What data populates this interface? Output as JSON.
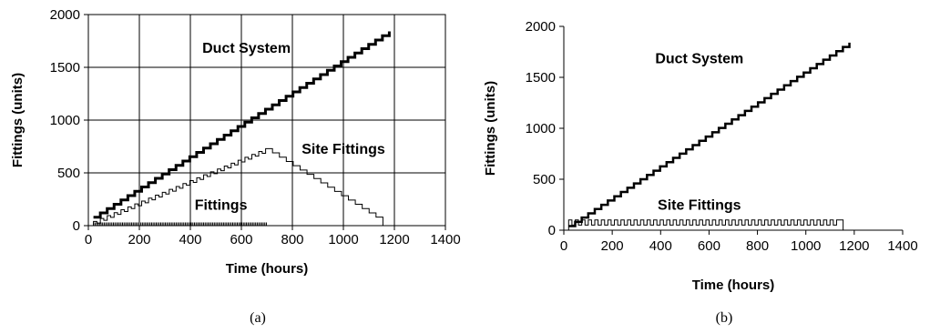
{
  "chart_data": [
    {
      "type": "line",
      "panel_label": "(a)",
      "xlabel": "Time (hours)",
      "ylabel": "Fittings (units)",
      "xlim": [
        0,
        1400
      ],
      "ylim": [
        0,
        2000
      ],
      "xticks": [
        "0",
        "200",
        "400",
        "600",
        "800",
        "1000",
        "1200",
        "1400"
      ],
      "yticks": [
        "0",
        "500",
        "1000",
        "1500",
        "2000"
      ],
      "grid": true,
      "annotations": [
        {
          "text": "Duct System",
          "x": 620,
          "y": 1640
        },
        {
          "text": "Site Fittings",
          "x": 1000,
          "y": 680
        },
        {
          "text": "Fittings",
          "x": 520,
          "y": 150
        }
      ],
      "series": [
        {
          "name": "Duct System",
          "style": "staircase",
          "x_start": 20,
          "x_end": 1180,
          "y_start": 80,
          "y_end": 1840,
          "steps": 43,
          "stroke_width": 3
        },
        {
          "name": "Site Fittings",
          "style": "rise-fall",
          "x_start": 20,
          "x_peak": 700,
          "x_end": 1160,
          "y_start": 40,
          "y_peak": 730,
          "y_end": 40,
          "step_width": 27,
          "stroke_width": 1
        },
        {
          "name": "Fittings",
          "style": "dense-ticks",
          "x_start": 20,
          "x_end": 700,
          "y_start": 0,
          "y_end": 30,
          "spacing": 6
        }
      ]
    },
    {
      "type": "line",
      "panel_label": "(b)",
      "xlabel": "Time (hours)",
      "ylabel": "Fittings (units)",
      "xlim": [
        0,
        1400
      ],
      "ylim": [
        0,
        2000
      ],
      "xticks": [
        "0",
        "200",
        "400",
        "600",
        "800",
        "1000",
        "1200",
        "1400"
      ],
      "yticks": [
        "0",
        "500",
        "1000",
        "1500",
        "2000"
      ],
      "grid": false,
      "annotations": [
        {
          "text": "Duct System",
          "x": 560,
          "y": 1640
        },
        {
          "text": "Site Fittings",
          "x": 560,
          "y": 200
        }
      ],
      "series": [
        {
          "name": "Duct System",
          "style": "staircase",
          "x_start": 20,
          "x_end": 1180,
          "y_start": 40,
          "y_end": 1840,
          "steps": 43,
          "stroke_width": 2.5
        },
        {
          "name": "Site Fittings",
          "style": "square-wave",
          "x_start": 20,
          "x_end": 1150,
          "y_low": 0,
          "y_high": 100,
          "period": 27,
          "stroke_width": 1
        }
      ]
    }
  ]
}
